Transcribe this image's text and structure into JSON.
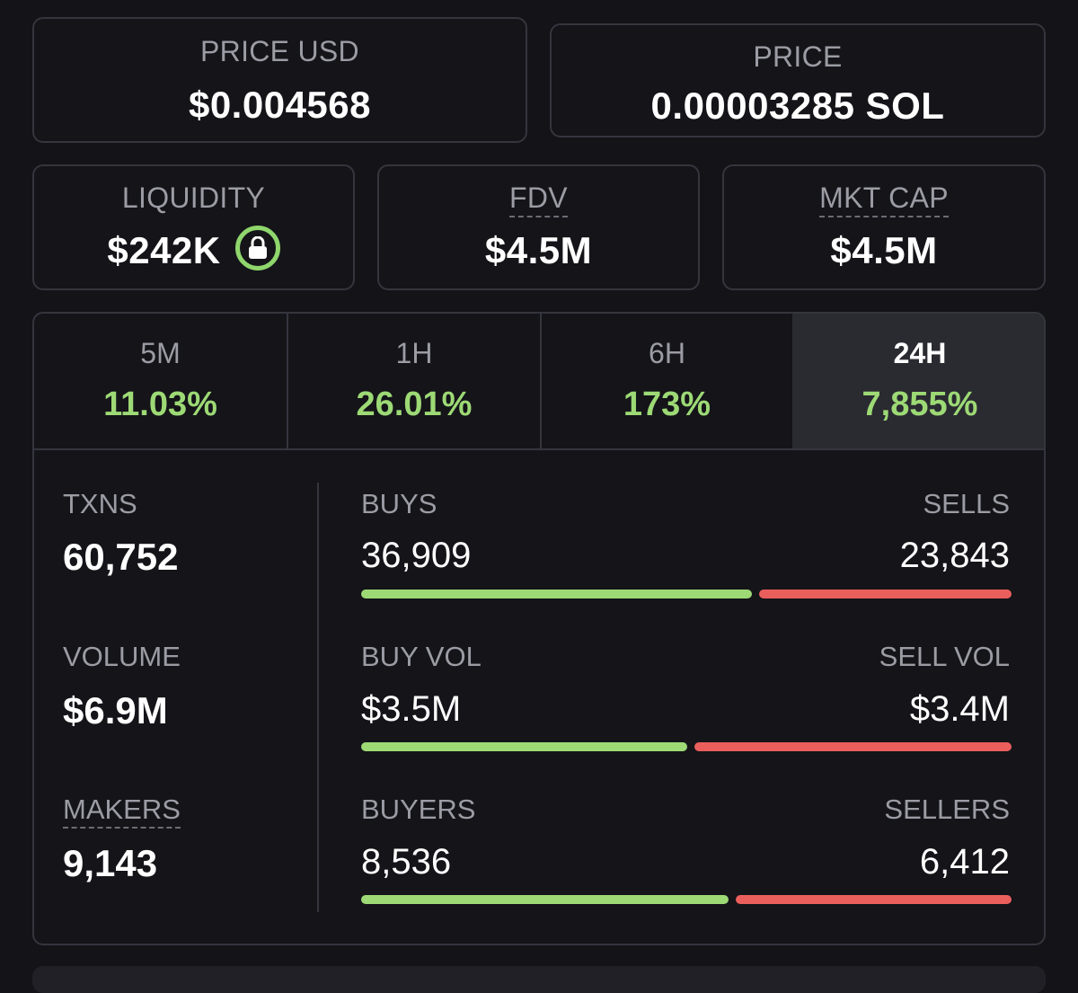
{
  "price_usd": {
    "label": "PRICE USD",
    "value": "$0.004568"
  },
  "price_native": {
    "label": "PRICE",
    "value": "0.00003285 SOL"
  },
  "liquidity": {
    "label": "LIQUIDITY",
    "value": "$242K",
    "icon": "lock-icon"
  },
  "fdv": {
    "label": "FDV",
    "value": "$4.5M"
  },
  "mkt_cap": {
    "label": "MKT CAP",
    "value": "$4.5M"
  },
  "timeframes": [
    {
      "label": "5M",
      "change": "11.03%"
    },
    {
      "label": "1H",
      "change": "26.01%"
    },
    {
      "label": "6H",
      "change": "173%"
    },
    {
      "label": "24H",
      "change": "7,855%"
    }
  ],
  "active_timeframe": "24H",
  "summary": {
    "txns": {
      "label": "TXNS",
      "value": "60,752"
    },
    "volume": {
      "label": "VOLUME",
      "value": "$6.9M"
    },
    "makers": {
      "label": "MAKERS",
      "value": "9,143"
    }
  },
  "breakdown": {
    "txns": {
      "buy_label": "BUYS",
      "buy_value": "36,909",
      "sell_label": "SELLS",
      "sell_value": "23,843",
      "buy_share": 0.6075
    },
    "volume": {
      "buy_label": "BUY VOL",
      "buy_value": "$3.5M",
      "sell_label": "SELL VOL",
      "sell_value": "$3.4M",
      "buy_share": 0.507
    },
    "makers": {
      "buy_label": "BUYERS",
      "buy_value": "8,536",
      "sell_label": "SELLERS",
      "sell_value": "6,412",
      "buy_share": 0.571
    }
  },
  "colors": {
    "positive": "#9dd975",
    "negative": "#ea5f5c",
    "background": "#131318",
    "border": "#35353e",
    "muted_text": "#9b9ca4"
  }
}
